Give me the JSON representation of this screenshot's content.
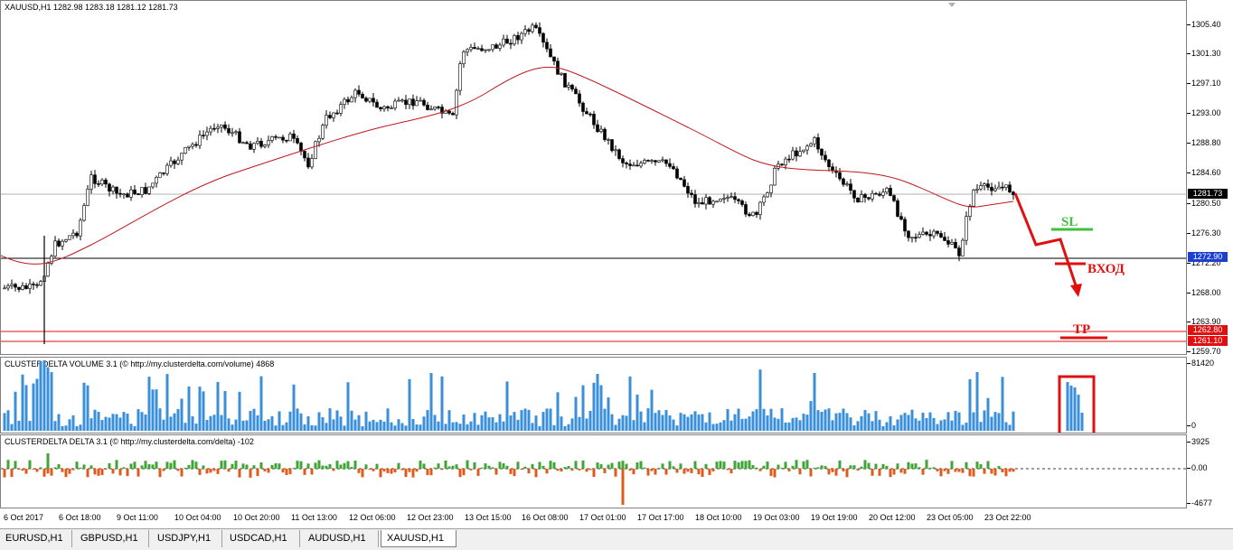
{
  "main": {
    "title": "XAUUSD,H1  1282.98 1283.18 1281.12 1281.73",
    "price_scale": [
      "1305.40",
      "1301.30",
      "1297.10",
      "1293.00",
      "1288.80",
      "1284.60",
      "1280.50",
      "1276.30",
      "1272.20",
      "1268.00",
      "1263.90",
      "1259.70"
    ],
    "tags": {
      "current": "1281.73",
      "level1": "1272.90",
      "level2": "1262.80",
      "level3": "1261.10"
    },
    "annotations": {
      "sl": "SL",
      "entry": "ВХОД",
      "tp": "TP"
    }
  },
  "volume": {
    "title": "CLUSTERDELTA VOLUME 3.1 (© http://my.clusterdelta.com/volume) 4868",
    "scale": [
      "81420",
      "0"
    ]
  },
  "delta": {
    "title": "CLUSTERDELTA DELTA 3.1 (© http://my.clusterdelta.com/delta) -102",
    "scale": [
      "3925",
      "0.00",
      "-4677"
    ]
  },
  "time_axis": [
    "6 Oct 2017",
    "6 Oct 18:00",
    "9 Oct 11:00",
    "10 Oct 04:00",
    "10 Oct 20:00",
    "11 Oct 13:00",
    "12 Oct 06:00",
    "12 Oct 23:00",
    "13 Oct 15:00",
    "16 Oct 08:00",
    "17 Oct 01:00",
    "17 Oct 17:00",
    "18 Oct 10:00",
    "19 Oct 03:00",
    "19 Oct 19:00",
    "20 Oct 12:00",
    "23 Oct 05:00",
    "23 Oct 22:00"
  ],
  "tabs": [
    "EURUSD,H1",
    "GBPUSD,H1",
    "USDJPY,H1",
    "USDCAD,H1",
    "AUDUSD,H1",
    "XAUUSD,H1"
  ],
  "active_tab": "XAUUSD,H1",
  "colors": {
    "bull": "#3fa535",
    "bear": "#e05a1a",
    "volume": "#3a8fd9",
    "ma": "#c0181b",
    "signal": "#e01010",
    "sl": "#3fc03f",
    "tag_blue": "#1c3fd0",
    "tag_red": "#e01010"
  }
}
